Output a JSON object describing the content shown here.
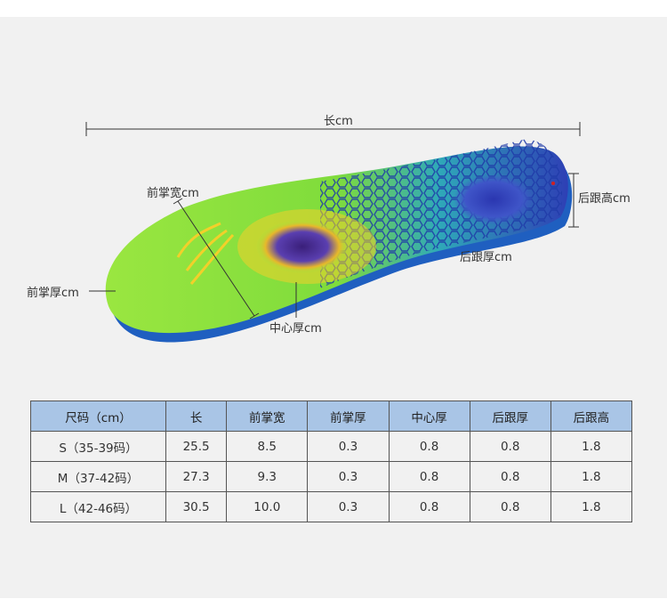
{
  "diagram": {
    "length_label": "长cm",
    "forefoot_width_label": "前掌宽cm",
    "forefoot_thickness_label": "前掌厚cm",
    "center_thickness_label": "中心厚cm",
    "heel_thickness_label": "后跟厚cm",
    "heel_height_label": "后跟高cm"
  },
  "table": {
    "headers": [
      "尺码（cm）",
      "长",
      "前掌宽",
      "前掌厚",
      "中心厚",
      "后跟厚",
      "后跟高"
    ],
    "rows": [
      [
        "S（35-39码）",
        "25.5",
        "8.5",
        "0.3",
        "0.8",
        "0.8",
        "1.8"
      ],
      [
        "M（37-42码）",
        "27.3",
        "9.3",
        "0.3",
        "0.8",
        "0.8",
        "1.8"
      ],
      [
        "L（42-46码）",
        "30.5",
        "10.0",
        "0.3",
        "0.8",
        "0.8",
        "1.8"
      ]
    ]
  },
  "colors": {
    "background": "#f1f1f1",
    "header_fill": "#a9c5e6",
    "insole_green": "#8ee03e",
    "insole_blue": "#2b43b8",
    "accent_yellow": "#f2d02a"
  }
}
